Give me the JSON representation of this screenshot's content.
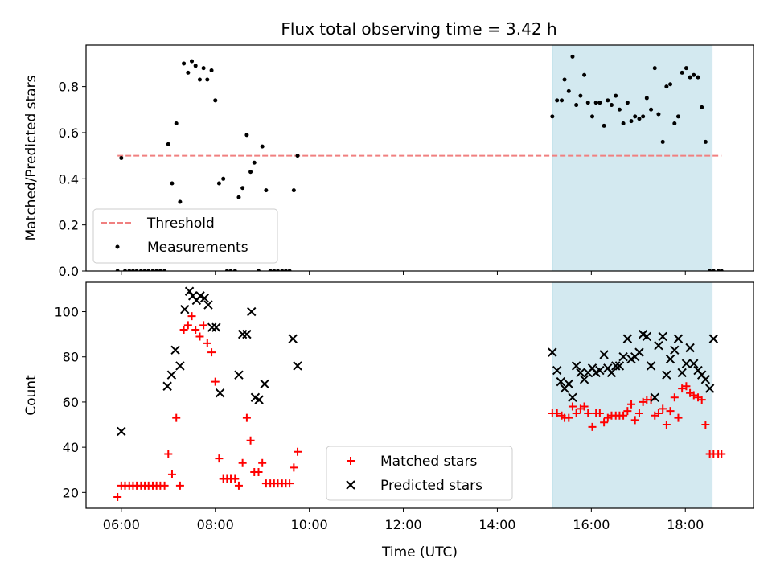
{
  "figure_title": "Flux total observing time = 3.42 h",
  "chart_data": [
    {
      "type": "scatter",
      "ylabel": "Matched/Predicted stars",
      "xlim": [
        5.25,
        19.45
      ],
      "ylim": [
        0,
        0.98
      ],
      "yticks": [
        0.0,
        0.2,
        0.4,
        0.6,
        0.8
      ],
      "yticklabels": [
        "0.0",
        "0.2",
        "0.4",
        "0.6",
        "0.8"
      ],
      "xticks": [
        6,
        8,
        10,
        12,
        14,
        16,
        18
      ],
      "grid": false,
      "legend_position": "lower-left",
      "shaded_interval": [
        15.17,
        18.57
      ],
      "shade_color": "#d3e9f0",
      "threshold": {
        "name": "Threshold",
        "value": 0.5,
        "x_range": [
          5.92,
          18.77
        ],
        "color": "#f08080",
        "style": "dashed"
      },
      "series": [
        {
          "name": "Measurements",
          "color": "#000000",
          "x": [
            5.92,
            6.0,
            6.08,
            6.17,
            6.25,
            6.33,
            6.42,
            6.5,
            6.58,
            6.67,
            6.75,
            6.83,
            6.92,
            7.0,
            7.08,
            7.17,
            7.25,
            7.33,
            7.42,
            7.5,
            7.58,
            7.67,
            7.75,
            7.83,
            7.92,
            8.0,
            8.08,
            8.17,
            8.25,
            8.33,
            8.42,
            8.5,
            8.58,
            8.67,
            8.75,
            8.83,
            8.92,
            9.0,
            9.08,
            9.17,
            9.25,
            9.33,
            9.42,
            9.5,
            9.58,
            9.67,
            9.75,
            15.17,
            15.27,
            15.37,
            15.43,
            15.52,
            15.6,
            15.68,
            15.77,
            15.85,
            15.93,
            16.02,
            16.1,
            16.18,
            16.27,
            16.35,
            16.43,
            16.52,
            16.6,
            16.68,
            16.77,
            16.85,
            16.93,
            17.02,
            17.1,
            17.18,
            17.27,
            17.35,
            17.43,
            17.52,
            17.6,
            17.68,
            17.77,
            17.85,
            17.93,
            18.02,
            18.1,
            18.18,
            18.27,
            18.35,
            18.43,
            18.52,
            18.6,
            18.7,
            18.77
          ],
          "y": [
            0.0,
            0.49,
            0.0,
            0.0,
            0.0,
            0.0,
            0.0,
            0.0,
            0.0,
            0.0,
            0.0,
            0.0,
            0.0,
            0.55,
            0.38,
            0.64,
            0.3,
            0.9,
            0.86,
            0.91,
            0.89,
            0.83,
            0.88,
            0.83,
            0.87,
            0.74,
            0.38,
            0.4,
            0.0,
            0.0,
            0.0,
            0.32,
            0.36,
            0.59,
            0.43,
            0.47,
            0.0,
            0.54,
            0.35,
            0.0,
            0.0,
            0.0,
            0.0,
            0.0,
            0.0,
            0.35,
            0.5,
            0.67,
            0.74,
            0.74,
            0.83,
            0.78,
            0.93,
            0.72,
            0.76,
            0.85,
            0.73,
            0.67,
            0.73,
            0.73,
            0.63,
            0.74,
            0.72,
            0.76,
            0.7,
            0.64,
            0.73,
            0.65,
            0.67,
            0.66,
            0.67,
            0.75,
            0.7,
            0.88,
            0.68,
            0.56,
            0.8,
            0.81,
            0.64,
            0.67,
            0.86,
            0.88,
            0.84,
            0.85,
            0.84,
            0.71,
            0.56,
            0.0,
            0.0,
            0.0,
            0.0
          ]
        }
      ]
    },
    {
      "type": "scatter",
      "xlabel": "Time (UTC)",
      "ylabel": "Count",
      "xlim": [
        5.25,
        19.45
      ],
      "ylim": [
        13,
        113
      ],
      "yticks": [
        20,
        40,
        60,
        80,
        100
      ],
      "xticks": [
        6,
        8,
        10,
        12,
        14,
        16,
        18
      ],
      "xticklabels": [
        "06:00",
        "08:00",
        "10:00",
        "12:00",
        "14:00",
        "16:00",
        "18:00"
      ],
      "grid": false,
      "legend_position": "lower-center",
      "shaded_interval": [
        15.17,
        18.57
      ],
      "shade_color": "#d3e9f0",
      "series": [
        {
          "name": "Matched stars",
          "marker": "plus",
          "color": "#ff0000",
          "x": [
            5.92,
            6.0,
            6.08,
            6.17,
            6.25,
            6.33,
            6.42,
            6.5,
            6.58,
            6.67,
            6.75,
            6.83,
            6.92,
            7.0,
            7.08,
            7.17,
            7.25,
            7.33,
            7.42,
            7.5,
            7.58,
            7.67,
            7.75,
            7.83,
            7.92,
            8.0,
            8.08,
            8.17,
            8.25,
            8.33,
            8.42,
            8.5,
            8.58,
            8.67,
            8.75,
            8.83,
            8.92,
            9.0,
            9.08,
            9.17,
            9.25,
            9.33,
            9.42,
            9.5,
            9.58,
            9.67,
            9.75,
            15.17,
            15.27,
            15.37,
            15.43,
            15.52,
            15.6,
            15.68,
            15.77,
            15.85,
            15.93,
            16.02,
            16.1,
            16.18,
            16.27,
            16.35,
            16.43,
            16.52,
            16.6,
            16.68,
            16.77,
            16.85,
            16.93,
            17.02,
            17.1,
            17.18,
            17.27,
            17.35,
            17.43,
            17.52,
            17.6,
            17.68,
            17.77,
            17.85,
            17.93,
            18.02,
            18.1,
            18.18,
            18.27,
            18.35,
            18.43,
            18.52,
            18.6,
            18.7,
            18.77
          ],
          "y": [
            18,
            23,
            23,
            23,
            23,
            23,
            23,
            23,
            23,
            23,
            23,
            23,
            23,
            37,
            28,
            53,
            23,
            92,
            94,
            98,
            92,
            89,
            94,
            86,
            82,
            69,
            35,
            26,
            26,
            26,
            26,
            23,
            33,
            53,
            43,
            29,
            29,
            33,
            24,
            24,
            24,
            24,
            24,
            24,
            24,
            31,
            38,
            55,
            55,
            54,
            53,
            53,
            58,
            55,
            57,
            58,
            55,
            49,
            55,
            55,
            51,
            53,
            54,
            54,
            54,
            54,
            56,
            59,
            52,
            55,
            60,
            61,
            61,
            54,
            55,
            57,
            50,
            56,
            62,
            53,
            66,
            67,
            64,
            63,
            62,
            61,
            50,
            37,
            37,
            37,
            37
          ]
        },
        {
          "name": "Predicted stars",
          "marker": "x",
          "color": "#000000",
          "x": [
            6.0,
            6.98,
            7.07,
            7.15,
            7.25,
            7.35,
            7.45,
            7.52,
            7.6,
            7.68,
            7.77,
            7.85,
            7.93,
            8.02,
            8.1,
            8.5,
            8.58,
            8.67,
            8.77,
            8.85,
            8.93,
            9.05,
            9.65,
            9.75,
            15.17,
            15.27,
            15.35,
            15.43,
            15.52,
            15.6,
            15.68,
            15.77,
            15.85,
            15.93,
            16.02,
            16.1,
            16.18,
            16.27,
            16.35,
            16.43,
            16.52,
            16.6,
            16.68,
            16.77,
            16.85,
            16.93,
            17.02,
            17.1,
            17.18,
            17.27,
            17.35,
            17.43,
            17.52,
            17.6,
            17.68,
            17.77,
            17.85,
            17.93,
            18.02,
            18.1,
            18.18,
            18.27,
            18.35,
            18.43,
            18.52,
            18.6
          ],
          "y": [
            47,
            67,
            72,
            83,
            76,
            101,
            109,
            107,
            105,
            107,
            106,
            103,
            93,
            93,
            64,
            72,
            90,
            90,
            100,
            62,
            61,
            68,
            88,
            76,
            82,
            74,
            69,
            66,
            68,
            62,
            76,
            73,
            70,
            73,
            75,
            73,
            74,
            81,
            75,
            73,
            76,
            76,
            80,
            88,
            79,
            80,
            82,
            90,
            89,
            76,
            62,
            85,
            89,
            72,
            79,
            83,
            88,
            73,
            77,
            84,
            77,
            74,
            72,
            70,
            66,
            88
          ]
        }
      ]
    }
  ]
}
